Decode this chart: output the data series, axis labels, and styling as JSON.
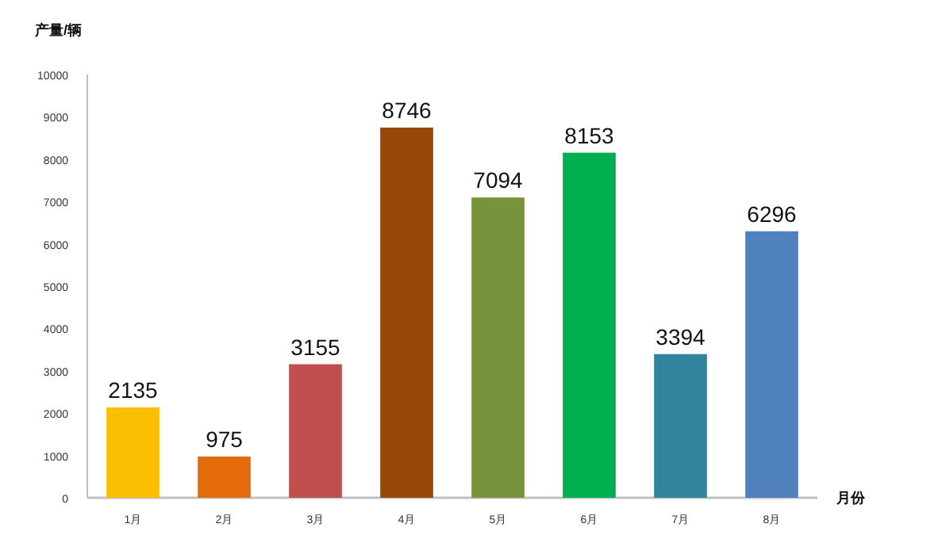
{
  "chart_data": {
    "type": "bar",
    "xlabel": "月份",
    "ylabel": "产量/辆",
    "categories": [
      "1月",
      "2月",
      "3月",
      "4月",
      "5月",
      "6月",
      "7月",
      "8月"
    ],
    "values": [
      2135,
      975,
      3155,
      8746,
      7094,
      8153,
      3394,
      6296
    ],
    "colors": [
      "#fbbe00",
      "#e36c0a",
      "#c0504d",
      "#974806",
      "#77933c",
      "#00b050",
      "#31849b",
      "#4f81bd"
    ],
    "ylim": [
      0,
      10000
    ],
    "yticks": [
      0,
      1000,
      2000,
      3000,
      4000,
      5000,
      6000,
      7000,
      8000,
      9000,
      10000
    ],
    "data_labels": true
  }
}
